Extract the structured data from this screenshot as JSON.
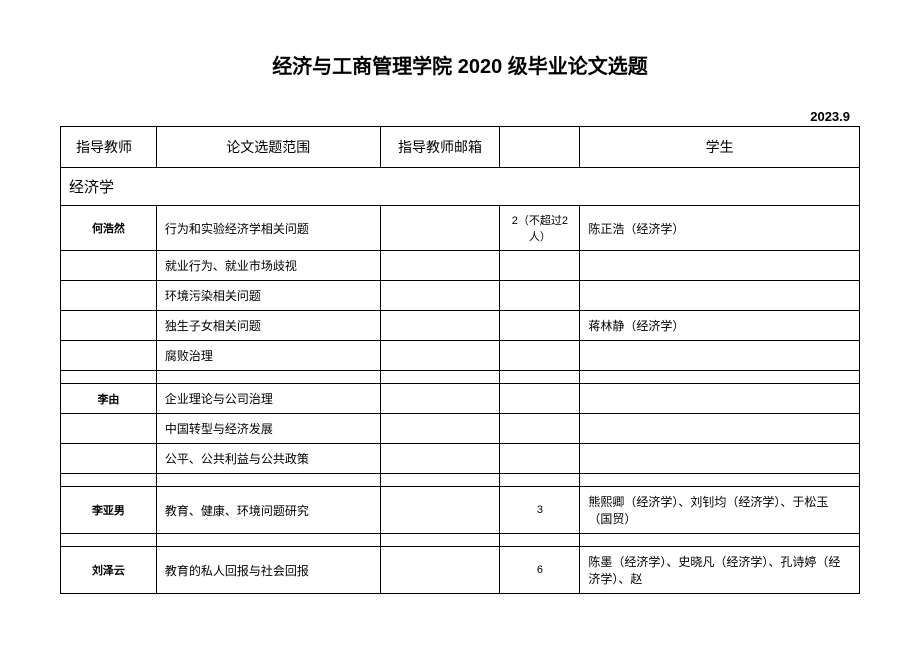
{
  "title": "经济与工商管理学院 2020 级毕业论文选题",
  "date": "2023.9",
  "headers": {
    "advisor": "指导教师",
    "topic": "论文选题范围",
    "email": "指导教师邮箱",
    "student": "学生"
  },
  "section": "经济学",
  "rows": [
    {
      "advisor": "何浩然",
      "topic": "行为和实验经济学相关问题",
      "email": "",
      "count": "2（不超过2 人）",
      "student": "陈正浩（经济学）"
    },
    {
      "advisor": "",
      "topic": "就业行为、就业市场歧视",
      "email": "",
      "count": "",
      "student": ""
    },
    {
      "advisor": "",
      "topic": "环境污染相关问题",
      "email": "",
      "count": "",
      "student": ""
    },
    {
      "advisor": "",
      "topic": "独生子女相关问题",
      "email": "",
      "count": "",
      "student": "蒋林静（经济学）"
    },
    {
      "advisor": "",
      "topic": "腐败治理",
      "email": "",
      "count": "",
      "student": ""
    },
    {
      "advisor": "",
      "topic": "",
      "email": "",
      "count": "",
      "student": ""
    },
    {
      "advisor": "李由",
      "topic": "企业理论与公司治理",
      "email": "",
      "count": "",
      "student": ""
    },
    {
      "advisor": "",
      "topic": "中国转型与经济发展",
      "email": "",
      "count": "",
      "student": ""
    },
    {
      "advisor": "",
      "topic": "公平、公共利益与公共政策",
      "email": "",
      "count": "",
      "student": ""
    },
    {
      "advisor": "",
      "topic": "",
      "email": "",
      "count": "",
      "student": ""
    },
    {
      "advisor": "李亚男",
      "topic": "教育、健康、环境问题研究",
      "email": "",
      "count": "3",
      "student": "熊熙卿（经济学）、刘钊均（经济学）、于松玉（国贸）"
    },
    {
      "advisor": "",
      "topic": "",
      "email": "",
      "count": "",
      "student": ""
    },
    {
      "advisor": "刘泽云",
      "topic": "教育的私人回报与社会回报",
      "email": "",
      "count": "6",
      "student": "陈墨（经济学）、史晓凡（经济学）、孔诗婷（经济学）、赵"
    }
  ]
}
